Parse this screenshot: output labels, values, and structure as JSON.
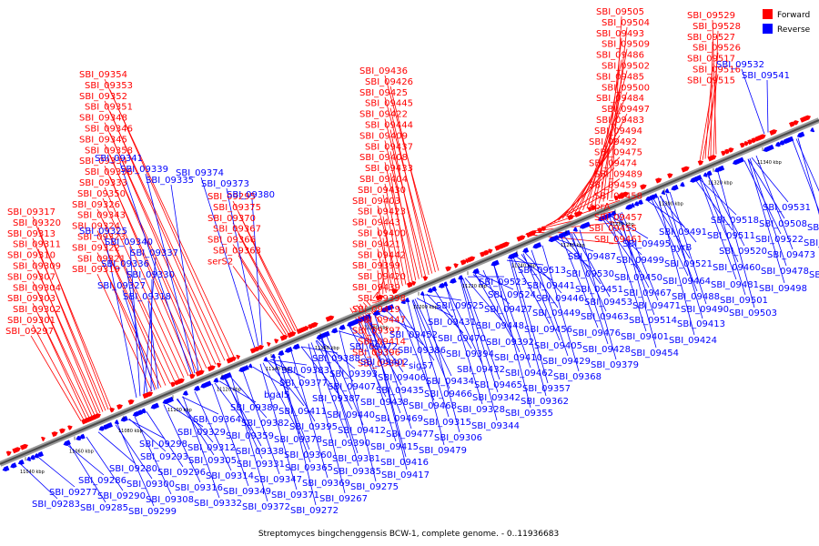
{
  "caption": "Streptomyces bingchenggensis BCW-1, complete genome. - 0..11936683",
  "legend": {
    "forward_label": "Forward",
    "reverse_label": "Reverse",
    "forward_color": "#ff0000",
    "reverse_color": "#0000ff"
  },
  "scale_ticks": [
    "11040 kbp",
    "11060 kbp",
    "11080 kbp",
    "11100 kbp",
    "11120 kbp",
    "11140 kbp",
    "11160 kbp",
    "11180 kbp",
    "11200 kbp",
    "11220 kbp",
    "11240 kbp",
    "11260 kbp",
    "11280 kbp",
    "11300 kbp",
    "11320 kbp",
    "11340 kbp"
  ],
  "forward_labels": [
    "SBI_09505",
    "SBI_09504",
    "SBI_09493",
    "SBI_09509",
    "SBI_09486",
    "SBI_09502",
    "SBI_09485",
    "SBI_09500",
    "SBI_09484",
    "SBI_09497",
    "SBI_09483",
    "SBI_09494",
    "SBI_09492",
    "SBI_09475",
    "SBI_09474",
    "SBI_09489",
    "SBI_09459",
    "SBI_09458",
    "aprA",
    "SBI_09457",
    "SBI_09455",
    "SBI_09461",
    "SBI_09529",
    "SBI_09528",
    "SBI_09527",
    "SBI_09526",
    "SBI_09517",
    "SBI_09516",
    "SBI_09515",
    "SBI_09436",
    "SBI_09426",
    "SBI_09425",
    "SBI_09445",
    "SBI_09422",
    "SBI_09444",
    "SBI_09409",
    "SBI_09437",
    "SBI_09408",
    "SBI_09433",
    "SBI_09404",
    "SBI_09430",
    "SBI_09403",
    "SBI_09423",
    "SBI_09443",
    "SBI_09400",
    "SBI_09421",
    "SBI_09442",
    "SBI_09399",
    "SBI_09420",
    "SBI_09439",
    "SBI_09398",
    "SBI_09419",
    "SBI_09447",
    "SBI_09397",
    "SBI_09414",
    "SBI_09396",
    "SBI_09391",
    "SBI_09354",
    "SBI_09353",
    "SBI_09352",
    "SBI_09351",
    "SBI_09348",
    "SBI_09346",
    "SBI_09345",
    "SBI_09358",
    "SBI_09334",
    "SBI_09356",
    "SBI_09333",
    "SBI_09350",
    "SBI_09326",
    "SBI_09343",
    "SBI_09324",
    "SBI_09323",
    "SBI_09322",
    "SBI_09321",
    "SBI_09319",
    "SBI_09317",
    "SBI_09320",
    "SBI_09313",
    "SBI_09311",
    "SBI_09310",
    "SBI_09309",
    "SBI_09307",
    "SBI_09304",
    "SBI_09303",
    "SBI_09302",
    "SBI_09301",
    "SBI_09297",
    "SBI_09295",
    "SBI_09375",
    "SBI_09370",
    "SBI_09367",
    "SBI_09366",
    "SBI_09363",
    "serS2",
    "SBI_09384"
  ],
  "reverse_labels_top": [
    "SBI_09341",
    "SBI_09339",
    "SBI_09335",
    "SBI_09374",
    "SBI_09373",
    "SBI_09380",
    "SBI_09325",
    "SBI_09340",
    "SBI_09337",
    "SBI_09336",
    "SBI_09330",
    "SBI_09327",
    "SBI_09318",
    "SBI_09532",
    "SBI_09541"
  ],
  "reverse_labels_bottom": [
    "SBI_09531",
    "SBI_09518",
    "SBI_09508",
    "SBI_09519",
    "SBI_09491",
    "SBI_09511",
    "SBI_09522",
    "SBI_09482",
    "SBI_09495",
    "gyrB",
    "SBI_09520",
    "SBI_09473",
    "SBI_09487",
    "SBI_09499",
    "SBI_09521",
    "SBI_09460",
    "SBI_09478",
    "SBI_09496",
    "SBI_09513",
    "SBI_09530",
    "SBI_09450",
    "SBI_09464",
    "SBI_09481",
    "SBI_09498",
    "SBI_09523",
    "SBI_09441",
    "SBI_09451",
    "SBI_09467",
    "SBI_09488",
    "SBI_09501",
    "SBI_09524",
    "SBI_09446",
    "SBI_09453",
    "SBI_09471",
    "SBI_09490",
    "SBI_09503",
    "SBI_09525",
    "SBI_09427",
    "SBI_09449",
    "SBI_09463",
    "SBI_09514",
    "SBI_09413",
    "SBI_09431",
    "SBI_09448",
    "SBI_09456",
    "SBI_09476",
    "SBI_09401",
    "SBI_09424",
    "SBI_09452",
    "SBI_09470",
    "SBI_09392",
    "SBI_09405",
    "SBI_09428",
    "SBI_09454",
    "SBI_09472",
    "SBI_09386",
    "SBI_09394",
    "SBI_09410",
    "SBI_09429",
    "SBI_09379",
    "SBI_09388",
    "SBI_09402",
    "sig57",
    "SBI_09432",
    "SBI_09462",
    "SBI_09368",
    "SBI_09383",
    "SBI_09393",
    "SBI_09406",
    "SBI_09434",
    "SBI_09465",
    "SBI_09357",
    "SBI_09377",
    "SBI_09407",
    "SBI_09435",
    "SBI_09466",
    "SBI_09342",
    "SBI_09362",
    "bgaI5",
    "SBI_09387",
    "SBI_09438",
    "SBI_09468",
    "SBI_09328",
    "SBI_09355",
    "SBI_09389",
    "SBI_09411",
    "SBI_09440",
    "SBI_09469",
    "SBI_09315",
    "SBI_09344",
    "SBI_09364",
    "SBI_09382",
    "SBI_09395",
    "SBI_09412",
    "SBI_09477",
    "SBI_09306",
    "SBI_09329",
    "SBI_09359",
    "SBI_09378",
    "SBI_09390",
    "SBI_09415",
    "SBI_09479",
    "SBI_09298",
    "SBI_09312",
    "SBI_09338",
    "SBI_09360",
    "SBI_09381",
    "SBI_09416",
    "SBI_09293",
    "SBI_09305",
    "SBI_09331",
    "SBI_09365",
    "SBI_09385",
    "SBI_09417",
    "SBI_09280",
    "SBI_09296",
    "SBI_09314",
    "SBI_09347",
    "SBI_09369",
    "SBI_09275",
    "SBI_09286",
    "SBI_09300",
    "SBI_09316",
    "SBI_09349",
    "SBI_09371",
    "SBI_09267",
    "SBI_09277",
    "SBI_09290",
    "SBI_09308",
    "SBI_09332",
    "SBI_09372",
    "SBI_09272",
    "SBI_09283",
    "SBI_09285",
    "SBI_09299"
  ]
}
